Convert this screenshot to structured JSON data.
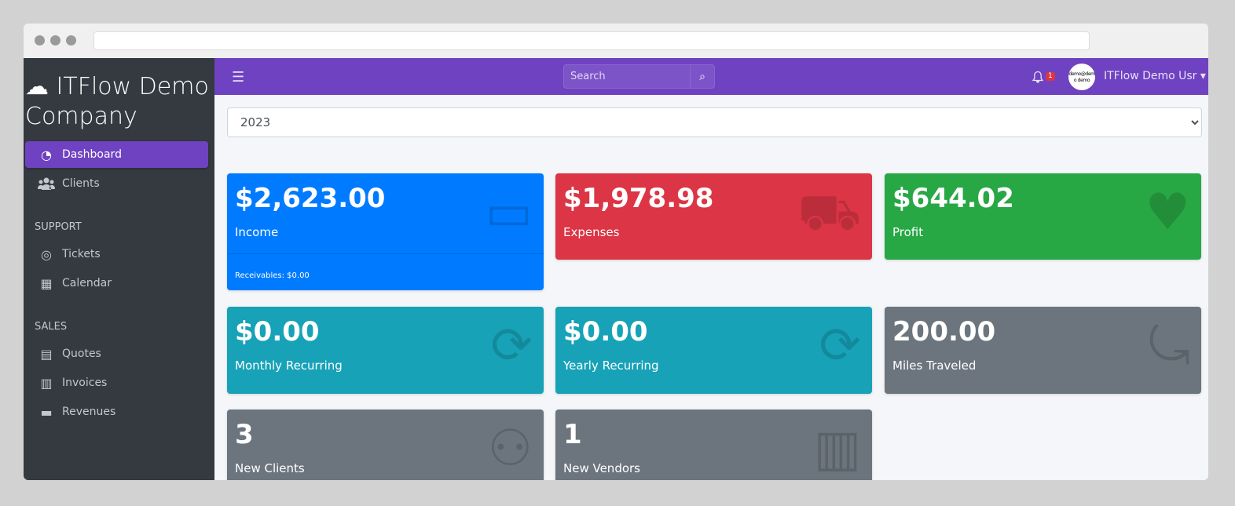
{
  "brand": "ITFlow Demo Company",
  "nav": {
    "dashboard": "Dashboard",
    "clients": "Clients",
    "support": "SUPPORT",
    "tickets": "Tickets",
    "calendar": "Calendar",
    "sales": "SALES",
    "quotes": "Quotes",
    "invoices": "Invoices",
    "revenues": "Revenues"
  },
  "topbar": {
    "search_placeholder": "Search",
    "notifications": "1",
    "avatar_text": "demo@demo demo",
    "user": "ITFlow Demo Usr"
  },
  "year": "2023",
  "cards": [
    {
      "value": "$2,623.00",
      "label": "Income",
      "footer": "Receivables: $0.00",
      "color": "#007bff",
      "icon": "credit-card-icon"
    },
    {
      "value": "$1,978.98",
      "label": "Expenses",
      "color": "#dc3545",
      "icon": "cart-icon"
    },
    {
      "value": "$644.02",
      "label": "Profit",
      "color": "#28a745",
      "icon": "heart-icon"
    },
    {
      "value": "$0.00",
      "label": "Monthly Recurring",
      "color": "#17a2b8",
      "icon": "sync-icon"
    },
    {
      "value": "$0.00",
      "label": "Yearly Recurring",
      "color": "#17a2b8",
      "icon": "sync-icon"
    },
    {
      "value": "200.00",
      "label": "Miles Traveled",
      "color": "#6c757d",
      "icon": "route-icon"
    },
    {
      "value": "3",
      "label": "New Clients",
      "color": "#6c757d",
      "icon": "users-icon"
    },
    {
      "value": "1",
      "label": "New Vendors",
      "color": "#6c757d",
      "icon": "building-icon"
    }
  ]
}
